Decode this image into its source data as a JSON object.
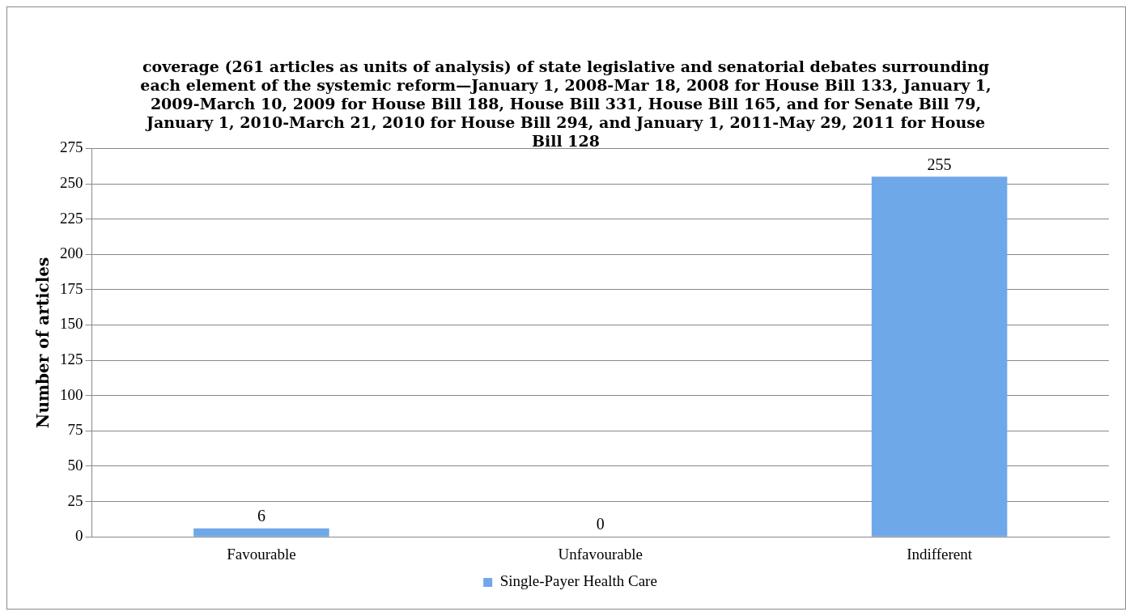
{
  "chart_data": {
    "type": "bar",
    "title": "coverage (261 articles as units of analysis) of state legislative and senatorial debates surrounding each element of the systemic reform—January 1, 2008-Mar 18, 2008 for House Bill 133, January 1, 2009-March 10, 2009 for House Bill 188, House Bill 331, House Bill 165, and for Senate Bill 79, January 1, 2010-March 21, 2010 for House Bill 294, and January 1, 2011-May 29, 2011 for House Bill 128",
    "ylabel": "Number of articles",
    "categories": [
      "Favourable",
      "Unfavourable",
      "Indifferent"
    ],
    "series": [
      {
        "name": "Single-Payer Health Care",
        "color": "#6fa8e8",
        "values": [
          6,
          0,
          255
        ]
      }
    ],
    "ylim": [
      0,
      275
    ],
    "yticks": [
      0,
      25,
      50,
      75,
      100,
      125,
      150,
      175,
      200,
      225,
      250,
      275
    ],
    "grid": "y",
    "legend": "bottom",
    "data_labels": true
  }
}
